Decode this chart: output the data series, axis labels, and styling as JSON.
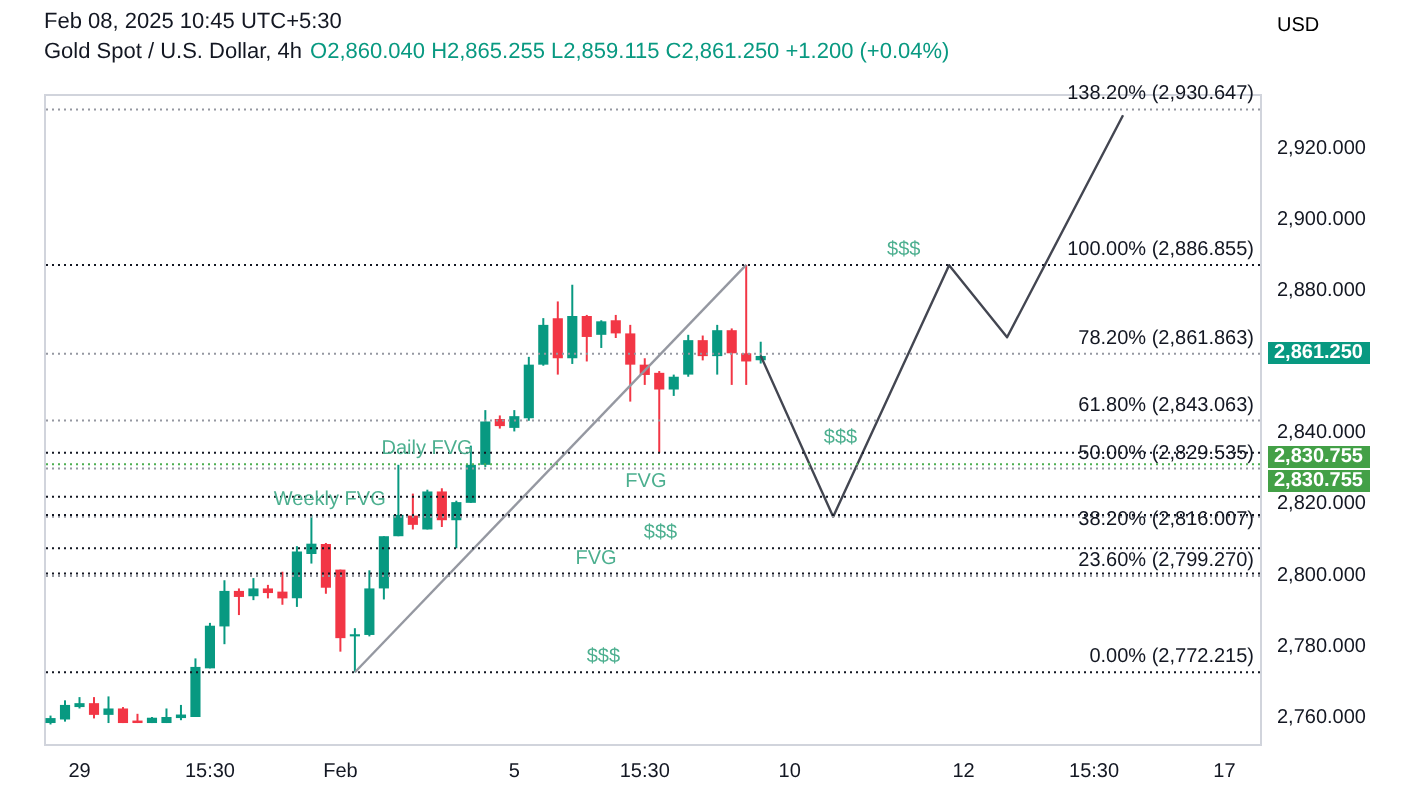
{
  "chart_data": {
    "type": "candlestick",
    "title": "Gold Spot / U.S. Dollar, 4h",
    "subtitle": "Feb 08, 2025 10:45 UTC+5:30",
    "annotations": [
      "O2,860.040 H2,865.255 L2,859.115 C2,861.250 +1.200 (+0.04%)",
      {
        "text": "$$$",
        "y": 2886.9
      },
      {
        "text": "$$$",
        "y": 2772.2
      },
      "2,861.250",
      "2,830.755",
      "2,830.755"
    ],
    "ylabel": "USD",
    "categories": [
      null,
      null,
      "29",
      null,
      null,
      null,
      null,
      null,
      null,
      null,
      null,
      "15:30",
      null,
      null,
      null,
      null,
      null,
      null,
      null,
      null,
      "Feb",
      null,
      null,
      null,
      null,
      null,
      null,
      null,
      null,
      null,
      null,
      null,
      "5",
      null,
      null,
      null,
      null,
      null,
      null,
      null,
      null,
      "15:30",
      null,
      null,
      null,
      null,
      null,
      null,
      null,
      null,
      null,
      "10",
      null,
      null,
      null,
      null,
      null,
      null,
      null,
      null,
      null,
      null,
      null,
      "12",
      null,
      null,
      null,
      null,
      null,
      null,
      null,
      null,
      "15:30",
      null,
      null,
      null,
      null,
      null,
      null,
      null,
      null,
      "17",
      null,
      null
    ],
    "ohlc": [
      [
        2757.9,
        2760.0,
        2757.5,
        2759.3
      ],
      [
        2758.9,
        2764.3,
        2758.3,
        2763.0
      ],
      [
        2762.4,
        2765.2,
        2762.0,
        2763.5
      ],
      [
        2763.5,
        2765.2,
        2759.2,
        2760.2
      ],
      [
        2760.2,
        2765.4,
        2757.9,
        2762.0
      ],
      [
        2762.0,
        2762.4,
        2757.9,
        2757.9
      ],
      [
        2758.6,
        2760.5,
        2757.9,
        2757.9
      ],
      [
        2757.9,
        2759.6,
        2757.9,
        2759.4
      ],
      [
        2757.9,
        2762.0,
        2757.9,
        2759.6
      ],
      [
        2759.3,
        2763.0,
        2758.7,
        2760.3
      ],
      [
        2759.6,
        2776.1,
        2759.6,
        2773.7
      ],
      [
        2773.3,
        2786.1,
        2773.3,
        2785.3
      ],
      [
        2785.1,
        2798.1,
        2780.1,
        2795.1
      ],
      [
        2795.1,
        2795.8,
        2788.3,
        2793.4
      ],
      [
        2793.6,
        2798.7,
        2792.5,
        2795.8
      ],
      [
        2795.8,
        2796.8,
        2793.0,
        2794.5
      ],
      [
        2794.9,
        2800.5,
        2791.2,
        2793.0
      ],
      [
        2793.0,
        2807.7,
        2790.6,
        2806.2
      ],
      [
        2805.5,
        2816.5,
        2802.8,
        2808.4
      ],
      [
        2808.3,
        2808.6,
        2794.3,
        2796.0
      ],
      [
        2801.1,
        2801.1,
        2778.0,
        2781.8
      ],
      [
        2782.3,
        2784.6,
        2772.2,
        2782.9
      ],
      [
        2782.7,
        2800.9,
        2782.3,
        2795.8
      ],
      [
        2795.8,
        2810.5,
        2792.7,
        2810.5
      ],
      [
        2810.5,
        2830.6,
        2810.5,
        2816.5
      ],
      [
        2816.3,
        2822.5,
        2812.4,
        2813.7
      ],
      [
        2812.4,
        2823.6,
        2812.4,
        2823.1
      ],
      [
        2823.1,
        2824.0,
        2813.1,
        2815.0
      ],
      [
        2815.0,
        2820.5,
        2807.1,
        2820.1
      ],
      [
        2819.9,
        2836.0,
        2819.9,
        2830.6
      ],
      [
        2830.6,
        2846.0,
        2830.0,
        2842.8
      ],
      [
        2843.5,
        2844.5,
        2840.8,
        2841.5
      ],
      [
        2841.0,
        2846.0,
        2840.0,
        2844.3
      ],
      [
        2843.7,
        2861.0,
        2843.0,
        2858.8
      ],
      [
        2858.8,
        2871.9,
        2858.5,
        2870.0
      ],
      [
        2871.9,
        2876.6,
        2856.0,
        2860.6
      ],
      [
        2860.6,
        2881.3,
        2859.0,
        2872.5
      ],
      [
        2872.5,
        2872.8,
        2859.7,
        2866.6
      ],
      [
        2867.2,
        2871.3,
        2863.5,
        2871.0
      ],
      [
        2871.3,
        2872.8,
        2866.3,
        2867.6
      ],
      [
        2867.6,
        2870.0,
        2848.4,
        2858.8
      ],
      [
        2858.8,
        2860.6,
        2853.1,
        2855.9
      ],
      [
        2856.5,
        2857.0,
        2834.0,
        2851.8
      ],
      [
        2851.8,
        2856.0,
        2850.0,
        2855.4
      ],
      [
        2856.0,
        2867.2,
        2855.4,
        2865.7
      ],
      [
        2865.7,
        2867.0,
        2860.0,
        2861.2
      ],
      [
        2861.2,
        2870.0,
        2856.0,
        2868.5
      ],
      [
        2868.5,
        2869.0,
        2853.1,
        2862.0
      ],
      [
        2862.0,
        2886.9,
        2853.1,
        2859.7
      ],
      [
        2860.04,
        2865.255,
        2859.115,
        2861.25
      ],
      null,
      null,
      null,
      null,
      null,
      null,
      null,
      null,
      null,
      null,
      null,
      null,
      null,
      null,
      null,
      null,
      null,
      null,
      null,
      null,
      null,
      null,
      null,
      null,
      null,
      null,
      null,
      null,
      null,
      null,
      null,
      null,
      null,
      null
    ],
    "colors": [
      "#089981",
      "#089981",
      "#089981",
      "#f23645",
      "#089981",
      "#f23645",
      "#f23645",
      "#089981",
      "#089981",
      "#089981",
      "#089981",
      "#089981",
      "#089981",
      "#f23645",
      "#089981",
      "#f23645",
      "#f23645",
      "#089981",
      "#089981",
      "#f23645",
      "#f23645",
      "#089981",
      "#089981",
      "#089981",
      "#089981",
      "#f23645",
      "#089981",
      "#f23645",
      "#089981",
      "#089981",
      "#089981",
      "#f23645",
      "#089981",
      "#089981",
      "#089981",
      "#f23645",
      "#089981",
      "#f23645",
      "#089981",
      "#f23645",
      "#f23645",
      "#f23645",
      "#f23645",
      "#089981",
      "#089981",
      "#f23645",
      "#089981",
      "#f23645",
      "#f23645",
      "#089981",
      null,
      null,
      null,
      null,
      null,
      null,
      null,
      null,
      null,
      null,
      null,
      null,
      null,
      null,
      null,
      null,
      null,
      null,
      null,
      null,
      null,
      null,
      null,
      null,
      null,
      null,
      null,
      null,
      null,
      null,
      null,
      null,
      null,
      null
    ],
    "series": [
      {
        "type": "line",
        "color": "#9598a1",
        "values": [
          null,
          null,
          null,
          null,
          null,
          null,
          null,
          null,
          null,
          null,
          null,
          null,
          null,
          null,
          null,
          null,
          null,
          null,
          null,
          null,
          null,
          2772.2,
          null,
          null,
          null,
          null,
          null,
          null,
          null,
          null,
          null,
          null,
          null,
          null,
          null,
          null,
          null,
          null,
          null,
          null,
          null,
          null,
          null,
          null,
          null,
          null,
          null,
          null,
          2886.9,
          null,
          null,
          null,
          null,
          null,
          null,
          null,
          null,
          null,
          null,
          null,
          null,
          null,
          null,
          null,
          null,
          null,
          null,
          null,
          null,
          null,
          null,
          null,
          null,
          null,
          null,
          null,
          null,
          null,
          null,
          null,
          null,
          null,
          null,
          null
        ]
      },
      {
        "type": "line",
        "color": "#434651",
        "values": [
          null,
          null,
          null,
          null,
          null,
          null,
          null,
          null,
          null,
          null,
          null,
          null,
          null,
          null,
          null,
          null,
          null,
          null,
          null,
          null,
          null,
          null,
          null,
          null,
          null,
          null,
          null,
          null,
          null,
          null,
          null,
          null,
          null,
          null,
          null,
          null,
          null,
          null,
          null,
          null,
          null,
          null,
          null,
          null,
          null,
          null,
          null,
          null,
          null,
          2861.3,
          null,
          null,
          null,
          null,
          2816,
          null,
          null,
          null,
          null,
          null,
          null,
          null,
          2886.8,
          null,
          null,
          null,
          2866.5,
          null,
          null,
          null,
          null,
          null,
          null,
          null,
          2929,
          null,
          null,
          null,
          null,
          null,
          null,
          null,
          null,
          null
        ]
      }
    ],
    "ylim": [
      2752,
      2935
    ],
    "yticks": [
      {
        "value": 2760,
        "label": "2,760.000"
      },
      {
        "value": 2780,
        "label": "2,780.000"
      },
      {
        "value": 2800,
        "label": "2,800.000"
      },
      {
        "value": 2820,
        "label": "2,820.000"
      },
      {
        "value": 2840,
        "label": "2,840.000"
      },
      {
        "value": 2880,
        "label": "2,880.000"
      },
      {
        "value": 2900,
        "label": "2,900.000"
      },
      {
        "value": 2920,
        "label": "2,920.000"
      }
    ],
    "ref_lines": [
      {
        "axis": "y",
        "value": 2930.647,
        "label": "138.20% (2,930.647)",
        "color": "#9598a1",
        "line_style": "dotted"
      },
      {
        "axis": "y",
        "value": 2886.855,
        "label": "100.00% (2,886.855)",
        "color": "#131722",
        "line_style": "dotted"
      },
      {
        "axis": "y",
        "value": 2861.863,
        "label": "78.20% (2,861.863)",
        "color": "#9598a1",
        "line_style": "dotted"
      },
      {
        "axis": "y",
        "value": 2843.063,
        "label": "61.80% (2,843.063)",
        "color": "#9598a1",
        "line_style": "dotted"
      },
      {
        "axis": "y",
        "value": 2829.535,
        "label": "50.00% (2,829.535)",
        "color": "#9598a1",
        "line_style": "dotted"
      },
      {
        "axis": "y",
        "value": 2816.007,
        "label": "38.20% (2,816.007)",
        "color": "#9598a1",
        "line_style": "dotted"
      },
      {
        "axis": "y",
        "value": 2799.27,
        "label": "23.60% (2,799.270)",
        "color": "#9598a1",
        "line_style": "dotted"
      },
      {
        "axis": "y",
        "value": 2772.215,
        "label": "0.00% (2,772.215)",
        "color": "#131722",
        "line_style": "dotted"
      },
      {
        "axis": "y",
        "value": 2834.0,
        "label": "$$$",
        "color": "#131722",
        "line_style": "dotted"
      },
      {
        "axis": "y",
        "value": 2821.6,
        "label": "FVG",
        "color": "#131722",
        "line_style": "dotted"
      },
      {
        "axis": "y",
        "value": 2816.5,
        "label": "Weekly FVG",
        "color": "#131722",
        "line_style": "dotted"
      },
      {
        "axis": "y",
        "value": 2807.1,
        "label": "$$$",
        "color": "#131722",
        "line_style": "dotted"
      },
      {
        "axis": "y",
        "value": 2800.0,
        "label": "FVG",
        "color": "#131722",
        "line_style": "dotted"
      },
      {
        "axis": "y",
        "value": 2830.755,
        "label": "Daily FVG",
        "color": "#4caf50",
        "line_style": "dotted"
      }
    ]
  }
}
